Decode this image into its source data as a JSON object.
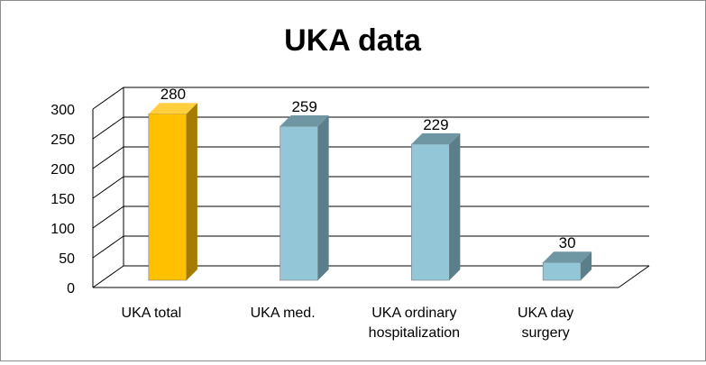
{
  "chart_data": {
    "type": "bar",
    "title": "UKA data",
    "xlabel": "",
    "ylabel": "",
    "categories": [
      [
        "UKA total"
      ],
      [
        "UKA med."
      ],
      [
        "UKA ordinary",
        "hospitalization"
      ],
      [
        "UKA day",
        "surgery"
      ]
    ],
    "values": [
      280,
      259,
      229,
      30
    ],
    "data_labels": [
      "280",
      "259",
      "229",
      "30"
    ],
    "ylim": [
      0,
      300
    ],
    "yticks": [
      "0",
      "50",
      "100",
      "150",
      "200",
      "250",
      "300"
    ],
    "grid": true,
    "legend": "none",
    "three_d": true,
    "colors": {
      "highlight": {
        "front": "#ffc000",
        "side": "#a67c00",
        "top": "#ffcf40"
      },
      "default": {
        "front": "#93c6d6",
        "side": "#5b7f8a",
        "top": "#6f97a3"
      },
      "grid": "#000000",
      "frame": "#8c8c8c"
    },
    "highlight_index": 0
  }
}
